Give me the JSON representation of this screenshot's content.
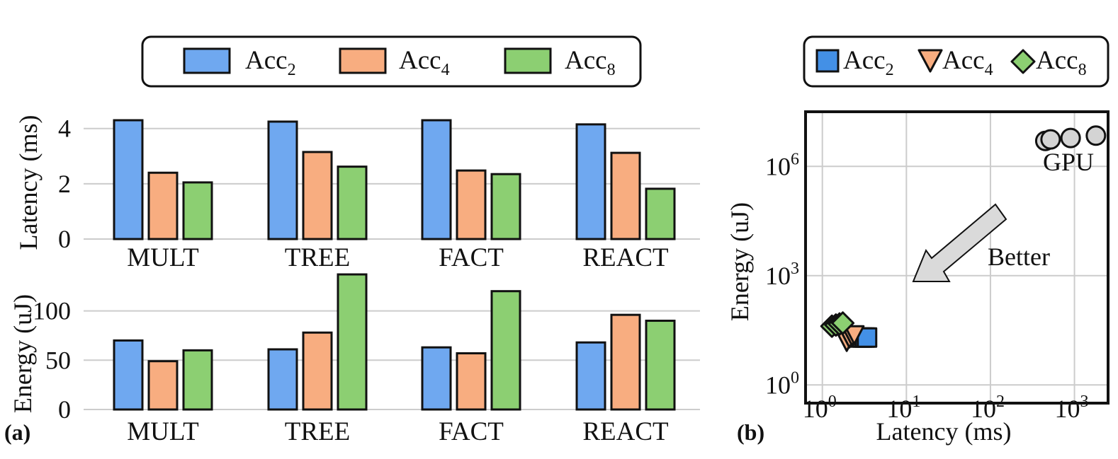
{
  "panel_labels": {
    "a": "(a)",
    "b": "(b)"
  },
  "colors": {
    "Acc2": "#6fa8f0",
    "Acc4": "#f8ad80",
    "Acc8": "#8ccf72",
    "GPU": "#d4d4d4",
    "Acc2_scatter": "#4390e6",
    "arrow": "#dadada",
    "grid": "#cccccc"
  },
  "chart_data": [
    {
      "id": "latency",
      "type": "bar",
      "title": "",
      "ylabel": "Latency (ms)",
      "categories": [
        "MULT",
        "TREE",
        "FACT",
        "REACT"
      ],
      "ylim": [
        0,
        4.3
      ],
      "yticks": [
        "0",
        "2",
        "4"
      ],
      "series": [
        {
          "name": "Acc2",
          "base": "Acc",
          "subscript": "2",
          "values": [
            4.3,
            4.25,
            4.3,
            4.15
          ]
        },
        {
          "name": "Acc4",
          "base": "Acc",
          "subscript": "4",
          "values": [
            2.4,
            3.15,
            2.48,
            3.12
          ]
        },
        {
          "name": "Acc8",
          "base": "Acc",
          "subscript": "8",
          "values": [
            2.05,
            2.62,
            2.35,
            1.82
          ]
        }
      ]
    },
    {
      "id": "energy",
      "type": "bar",
      "title": "",
      "ylabel": "Energy (uJ)",
      "categories": [
        "MULT",
        "TREE",
        "FACT",
        "REACT"
      ],
      "ylim": [
        0,
        137
      ],
      "yticks": [
        "0",
        "50",
        "100"
      ],
      "series": [
        {
          "name": "Acc2",
          "values": [
            70,
            61,
            63,
            68
          ]
        },
        {
          "name": "Acc4",
          "values": [
            49,
            78,
            57,
            96
          ]
        },
        {
          "name": "Acc8",
          "values": [
            60,
            137,
            120,
            90
          ]
        }
      ]
    },
    {
      "id": "scatter",
      "type": "scatter",
      "xlabel": "Latency (ms)",
      "ylabel": "Energy (uJ)",
      "xscale": "log",
      "yscale": "log",
      "xlim_log10": [
        -0.2,
        3.4
      ],
      "ylim_log10": [
        -0.5,
        7.5
      ],
      "xticks": [
        {
          "base": "10",
          "exp": "0"
        },
        {
          "base": "10",
          "exp": "1"
        },
        {
          "base": "10",
          "exp": "2"
        },
        {
          "base": "10",
          "exp": "3"
        }
      ],
      "yticks": [
        {
          "base": "10",
          "exp": "0"
        },
        {
          "base": "10",
          "exp": "3"
        },
        {
          "base": "10",
          "exp": "6"
        }
      ],
      "grid": true,
      "series": [
        {
          "name": "GPU",
          "marker": "circle",
          "x": [
            450,
            520,
            900,
            1800
          ],
          "y": [
            5000000,
            5500000,
            6000000,
            7000000
          ]
        },
        {
          "name": "Acc2",
          "marker": "square",
          "x": [
            2.8,
            3.0,
            3.2,
            3.4
          ],
          "y": [
            20,
            20,
            20,
            20
          ]
        },
        {
          "name": "Acc4",
          "marker": "triangle",
          "x": [
            1.95,
            2.1,
            2.25,
            2.4
          ],
          "y": [
            16,
            20,
            23,
            25
          ]
        },
        {
          "name": "Acc8",
          "marker": "diamond",
          "x": [
            1.3,
            1.45,
            1.6,
            1.75
          ],
          "y": [
            41,
            44,
            47,
            50
          ]
        }
      ],
      "annotations": [
        {
          "text": "GPU"
        },
        {
          "text": "Better"
        }
      ]
    }
  ]
}
